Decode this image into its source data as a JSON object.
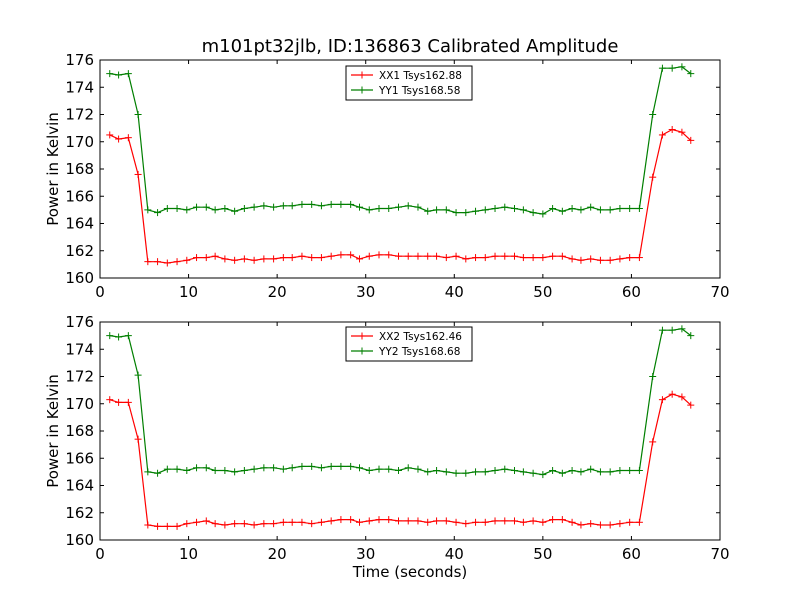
{
  "page": {
    "title": "m101pt32jlb, ID:136863 Calibrated Amplitude"
  },
  "chart_data": [
    {
      "type": "line",
      "title": "m101pt32jlb, ID:136863 Calibrated Amplitude",
      "xlabel": "",
      "ylabel": "Power in Kelvin",
      "xlim": [
        0,
        70
      ],
      "ylim": [
        160,
        176
      ],
      "x_ticks": [
        0,
        10,
        20,
        30,
        40,
        50,
        60,
        70
      ],
      "y_ticks": [
        160,
        162,
        164,
        166,
        168,
        170,
        172,
        174,
        176
      ],
      "grid": false,
      "legend_position": "top-center",
      "x": [
        1.1,
        2.1,
        3.2,
        4.3,
        5.4,
        6.5,
        7.6,
        8.7,
        9.8,
        10.9,
        12.0,
        13.0,
        14.1,
        15.2,
        16.3,
        17.4,
        18.5,
        19.6,
        20.7,
        21.7,
        22.8,
        23.9,
        25.0,
        26.1,
        27.2,
        28.3,
        29.3,
        30.4,
        31.5,
        32.6,
        33.7,
        34.8,
        35.9,
        37.0,
        38.0,
        39.1,
        40.2,
        41.3,
        42.4,
        43.5,
        44.6,
        45.7,
        46.8,
        47.8,
        48.9,
        50.0,
        51.1,
        52.2,
        53.3,
        54.3,
        55.4,
        56.5,
        57.6,
        58.7,
        59.8,
        60.9,
        62.4,
        63.5,
        64.6,
        65.7,
        66.7
      ],
      "series": [
        {
          "name": "XX1 Tsys162.88",
          "color": "#ff0000",
          "values": [
            170.5,
            170.2,
            170.3,
            167.6,
            161.2,
            161.2,
            161.1,
            161.2,
            161.3,
            161.5,
            161.5,
            161.6,
            161.4,
            161.3,
            161.4,
            161.3,
            161.4,
            161.4,
            161.5,
            161.5,
            161.6,
            161.5,
            161.5,
            161.6,
            161.7,
            161.7,
            161.4,
            161.6,
            161.7,
            161.7,
            161.6,
            161.6,
            161.6,
            161.6,
            161.6,
            161.5,
            161.6,
            161.4,
            161.5,
            161.5,
            161.6,
            161.6,
            161.6,
            161.5,
            161.5,
            161.5,
            161.6,
            161.6,
            161.4,
            161.3,
            161.4,
            161.3,
            161.3,
            161.4,
            161.5,
            161.5,
            167.4,
            170.5,
            170.9,
            170.7,
            170.1
          ]
        },
        {
          "name": "YY1 Tsys168.58",
          "color": "#007f00",
          "values": [
            175.0,
            174.9,
            175.0,
            172.0,
            165.0,
            164.8,
            165.1,
            165.1,
            165.0,
            165.2,
            165.2,
            165.0,
            165.1,
            164.9,
            165.1,
            165.2,
            165.3,
            165.2,
            165.3,
            165.3,
            165.4,
            165.4,
            165.3,
            165.4,
            165.4,
            165.4,
            165.2,
            165.0,
            165.1,
            165.1,
            165.2,
            165.3,
            165.2,
            164.9,
            165.0,
            165.0,
            164.8,
            164.8,
            164.9,
            165.0,
            165.1,
            165.2,
            165.1,
            165.0,
            164.8,
            164.7,
            165.1,
            164.9,
            165.1,
            165.0,
            165.2,
            165.0,
            165.0,
            165.1,
            165.1,
            165.1,
            172.0,
            175.4,
            175.4,
            175.5,
            175.0
          ]
        }
      ]
    },
    {
      "type": "line",
      "title": "",
      "xlabel": "Time (seconds)",
      "ylabel": "Power in Kelvin",
      "xlim": [
        0,
        70
      ],
      "ylim": [
        160,
        176
      ],
      "x_ticks": [
        0,
        10,
        20,
        30,
        40,
        50,
        60,
        70
      ],
      "y_ticks": [
        160,
        162,
        164,
        166,
        168,
        170,
        172,
        174,
        176
      ],
      "grid": false,
      "legend_position": "top-center",
      "x": [
        1.1,
        2.1,
        3.2,
        4.3,
        5.4,
        6.5,
        7.6,
        8.7,
        9.8,
        10.9,
        12.0,
        13.0,
        14.1,
        15.2,
        16.3,
        17.4,
        18.5,
        19.6,
        20.7,
        21.7,
        22.8,
        23.9,
        25.0,
        26.1,
        27.2,
        28.3,
        29.3,
        30.4,
        31.5,
        32.6,
        33.7,
        34.8,
        35.9,
        37.0,
        38.0,
        39.1,
        40.2,
        41.3,
        42.4,
        43.5,
        44.6,
        45.7,
        46.8,
        47.8,
        48.9,
        50.0,
        51.1,
        52.2,
        53.3,
        54.3,
        55.4,
        56.5,
        57.6,
        58.7,
        59.8,
        60.9,
        62.4,
        63.5,
        64.6,
        65.7,
        66.7
      ],
      "series": [
        {
          "name": "XX2 Tsys162.46",
          "color": "#ff0000",
          "values": [
            170.3,
            170.1,
            170.1,
            167.4,
            161.1,
            161.0,
            161.0,
            161.0,
            161.2,
            161.3,
            161.4,
            161.2,
            161.1,
            161.2,
            161.2,
            161.1,
            161.2,
            161.2,
            161.3,
            161.3,
            161.3,
            161.2,
            161.3,
            161.4,
            161.5,
            161.5,
            161.3,
            161.4,
            161.5,
            161.5,
            161.4,
            161.4,
            161.4,
            161.3,
            161.4,
            161.4,
            161.3,
            161.2,
            161.3,
            161.3,
            161.4,
            161.4,
            161.4,
            161.3,
            161.4,
            161.3,
            161.5,
            161.5,
            161.3,
            161.1,
            161.2,
            161.1,
            161.1,
            161.2,
            161.3,
            161.3,
            167.2,
            170.3,
            170.7,
            170.5,
            169.9
          ]
        },
        {
          "name": "YY2 Tsys168.68",
          "color": "#007f00",
          "values": [
            175.0,
            174.9,
            175.0,
            172.1,
            165.0,
            164.9,
            165.2,
            165.2,
            165.1,
            165.3,
            165.3,
            165.1,
            165.1,
            165.0,
            165.1,
            165.2,
            165.3,
            165.3,
            165.2,
            165.3,
            165.4,
            165.4,
            165.3,
            165.4,
            165.4,
            165.4,
            165.3,
            165.1,
            165.2,
            165.2,
            165.1,
            165.3,
            165.2,
            165.0,
            165.1,
            165.0,
            164.9,
            164.9,
            165.0,
            165.0,
            165.1,
            165.2,
            165.1,
            165.0,
            164.9,
            164.8,
            165.1,
            164.9,
            165.1,
            165.0,
            165.2,
            165.0,
            165.0,
            165.1,
            165.1,
            165.1,
            172.0,
            175.4,
            175.4,
            175.5,
            175.0
          ]
        }
      ]
    }
  ]
}
